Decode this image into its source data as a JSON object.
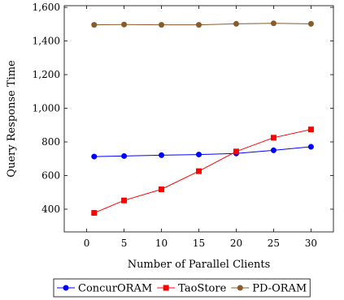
{
  "chart_data": {
    "type": "line",
    "xlabel": "Number of Parallel Clients",
    "ylabel": "Query Response Time",
    "x": [
      1,
      5,
      10,
      15,
      20,
      25,
      30
    ],
    "xlim": [
      -3,
      33
    ],
    "ylim": [
      265,
      1610
    ],
    "x_ticks": [
      0,
      5,
      10,
      15,
      20,
      25,
      30
    ],
    "y_ticks": [
      400,
      600,
      800,
      1000,
      1200,
      1400,
      1600
    ],
    "y_tick_labels": [
      "400",
      "600",
      "800",
      "1,000",
      "1,200",
      "1,400",
      "1,600"
    ],
    "grid": false,
    "legend_position": "bottom",
    "series": [
      {
        "name": "ConcurORAM",
        "color": "#0000ff",
        "marker": "circle",
        "values": [
          713,
          716,
          721,
          725,
          731,
          750,
          771
        ]
      },
      {
        "name": "TaoStore",
        "color": "#ff0000",
        "marker": "square",
        "values": [
          378,
          452,
          518,
          626,
          743,
          825,
          874
        ]
      },
      {
        "name": "PD-ORAM",
        "color": "#8b5a2b",
        "marker": "circle",
        "values": [
          1496,
          1498,
          1496,
          1496,
          1502,
          1505,
          1502
        ]
      }
    ]
  }
}
